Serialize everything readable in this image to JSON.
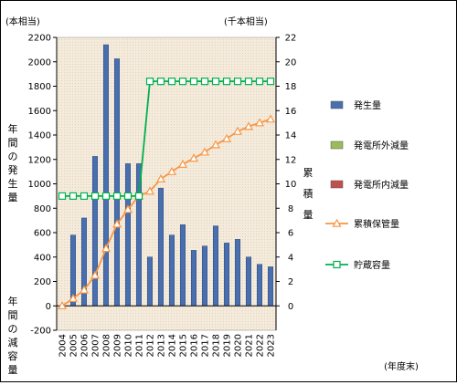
{
  "chart_data": {
    "type": "bar",
    "categories": [
      "2004",
      "2005",
      "2006",
      "2007",
      "2008",
      "2009",
      "2010",
      "2011",
      "2012",
      "2013",
      "2014",
      "2015",
      "2016",
      "2017",
      "2018",
      "2019",
      "2020",
      "2021",
      "2022",
      "2023"
    ],
    "left_axis": {
      "unit": "(本相当)",
      "label_upper": "年間の発生量",
      "label_lower": "年間の減容量",
      "ylim": [
        -200,
        2200
      ],
      "ticks": [
        -200,
        0,
        200,
        400,
        600,
        800,
        1000,
        1200,
        1400,
        1600,
        1800,
        2000,
        2200
      ]
    },
    "right_axis": {
      "unit": "(千本相当)",
      "label": "累積量",
      "ylim": [
        -2,
        22
      ],
      "ticks": [
        0,
        2,
        4,
        6,
        8,
        10,
        12,
        14,
        16,
        18,
        20,
        22
      ]
    },
    "xlabel": "(年度末)",
    "series": [
      {
        "name": "発生量",
        "kind": "bar",
        "axis": "left",
        "color": "#4a6fae",
        "values": [
          0,
          580,
          720,
          1225,
          2140,
          2025,
          1165,
          1165,
          400,
          965,
          580,
          665,
          455,
          490,
          655,
          515,
          545,
          400,
          340,
          320
        ]
      },
      {
        "name": "発電所外減量",
        "kind": "bar",
        "axis": "left",
        "color": "#9bbb59",
        "values": [
          0,
          0,
          0,
          0,
          0,
          0,
          0,
          0,
          0,
          0,
          0,
          0,
          0,
          0,
          0,
          0,
          0,
          0,
          0,
          0
        ]
      },
      {
        "name": "発電所内減量",
        "kind": "bar",
        "axis": "left",
        "color": "#c0504d",
        "values": [
          0,
          0,
          0,
          0,
          0,
          0,
          0,
          0,
          0,
          0,
          0,
          0,
          0,
          0,
          0,
          0,
          0,
          0,
          0,
          0
        ]
      },
      {
        "name": "累積保管量",
        "kind": "line",
        "axis": "right",
        "color": "#f79646",
        "marker": "triangle",
        "values": [
          0,
          0.6,
          1.3,
          2.5,
          4.7,
          6.7,
          7.9,
          9.0,
          9.4,
          10.4,
          11.0,
          11.6,
          12.1,
          12.6,
          13.2,
          13.7,
          14.3,
          14.7,
          15.0,
          15.3
        ]
      },
      {
        "name": "貯蔵容量",
        "kind": "line",
        "axis": "right",
        "color": "#00b050",
        "marker": "square",
        "values": [
          9.0,
          9.0,
          9.0,
          9.0,
          9.0,
          9.0,
          9.0,
          9.0,
          18.4,
          18.4,
          18.4,
          18.4,
          18.4,
          18.4,
          18.4,
          18.4,
          18.4,
          18.4,
          18.4,
          18.4
        ]
      }
    ],
    "legend_position": "right",
    "grid": false
  }
}
